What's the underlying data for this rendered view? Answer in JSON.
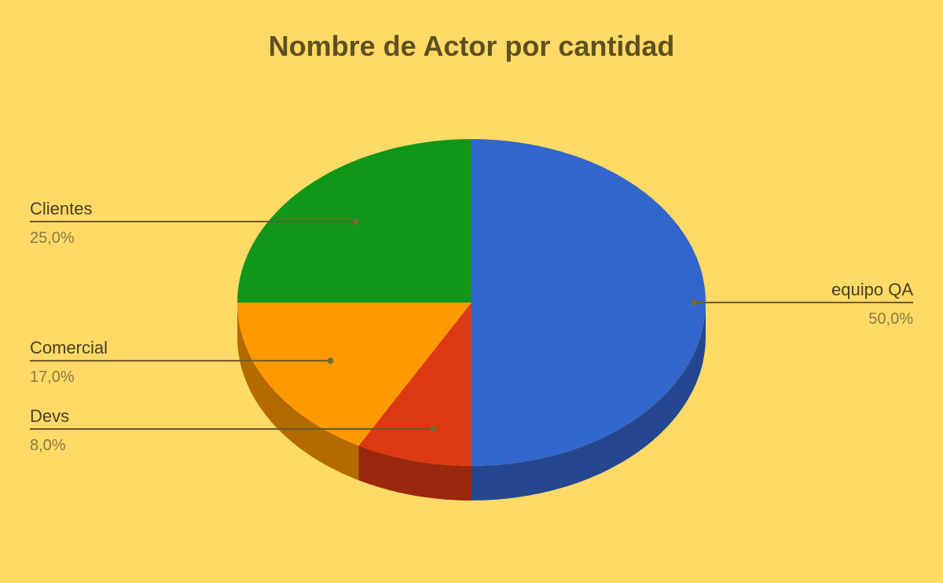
{
  "chart_data": {
    "type": "pie",
    "title": "Nombre de Actor por cantidad",
    "categories": [
      "equipo QA",
      "Devs",
      "Comercial",
      "Clientes"
    ],
    "values": [
      50.0,
      8.0,
      17.0,
      25.0
    ],
    "percent_labels": [
      "50,0%",
      "8,0%",
      "17,0%",
      "25,0%"
    ],
    "colors": [
      "#3366CC",
      "#DC3912",
      "#FF9900",
      "#109618"
    ],
    "start_angle": "12 o'clock, clockwise",
    "style": "3d",
    "background": "#FFDA66",
    "legend": "none (leader-line labels)"
  }
}
